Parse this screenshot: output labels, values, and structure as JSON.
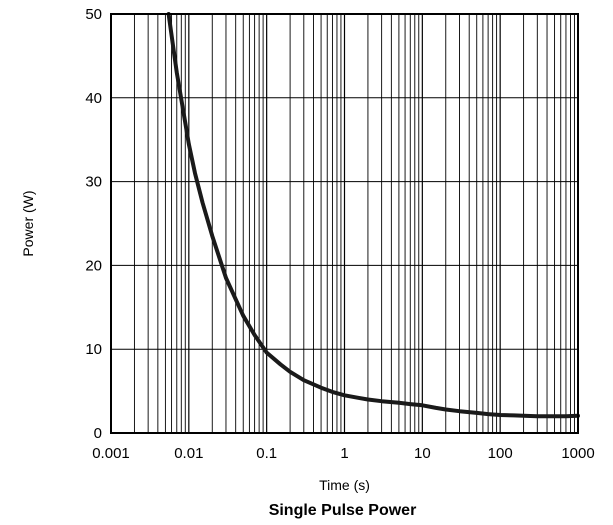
{
  "chart_data": {
    "type": "line",
    "title": "Single Pulse Power",
    "xlabel": "Time (s)",
    "ylabel": "Power (W)",
    "x_scale": "log",
    "xlim": [
      0.001,
      1000
    ],
    "ylim": [
      0,
      50
    ],
    "x_ticks": [
      "0.001",
      "0.01",
      "0.1",
      "1",
      "10",
      "100",
      "1000"
    ],
    "y_ticks": [
      "0",
      "10",
      "20",
      "30",
      "40",
      "50"
    ],
    "grid": true,
    "series": [
      {
        "color": "#1a1a1a",
        "x": [
          0.0055,
          0.007,
          0.009,
          0.01,
          0.012,
          0.015,
          0.02,
          0.03,
          0.05,
          0.07,
          0.1,
          0.15,
          0.2,
          0.3,
          0.5,
          0.7,
          1,
          1.5,
          2,
          3,
          5,
          7,
          10,
          15,
          20,
          30,
          50,
          70,
          100,
          150,
          200,
          300,
          500,
          700,
          1000
        ],
        "y": [
          50,
          43,
          37,
          34.5,
          31,
          27.5,
          23.5,
          18.5,
          14,
          11.7,
          9.6,
          8.2,
          7.3,
          6.3,
          5.4,
          4.9,
          4.5,
          4.2,
          4.0,
          3.8,
          3.6,
          3.45,
          3.3,
          3.0,
          2.8,
          2.6,
          2.4,
          2.25,
          2.15,
          2.1,
          2.05,
          2.0,
          2.0,
          2.0,
          2.05
        ]
      }
    ]
  }
}
